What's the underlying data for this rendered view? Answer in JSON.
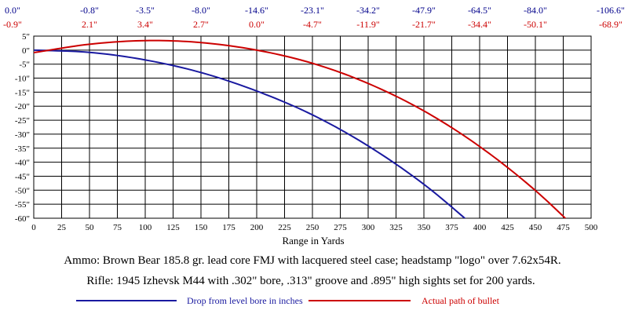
{
  "chart_data": {
    "type": "line",
    "xlabel": "Range in Yards",
    "ylabel": "",
    "xlim": [
      0,
      500
    ],
    "ylim": [
      -60,
      5
    ],
    "grid": true,
    "x_ticks": [
      "0",
      "25",
      "50",
      "75",
      "100",
      "125",
      "150",
      "175",
      "200",
      "225",
      "250",
      "275",
      "300",
      "325",
      "350",
      "375",
      "400",
      "425",
      "450",
      "475",
      "500"
    ],
    "y_ticks": [
      "0\"",
      "-5\"",
      "-10\"",
      "-15\"",
      "-20\"",
      "-25\"",
      "-30\"",
      "-35\"",
      "-40\"",
      "-45\"",
      "-50\"",
      "-55\"",
      "-60\""
    ],
    "y_tick_extra": "5\"",
    "top_labels_x": [
      0,
      50,
      100,
      150,
      200,
      250,
      300,
      350,
      400,
      450,
      500
    ],
    "drop_labels": [
      "0.0\"",
      "-0.8\"",
      "-3.5\"",
      "-8.0\"",
      "-14.6\"",
      "-23.1\"",
      "-34.2\"",
      "-47.9\"",
      "-64.5\"",
      "-84.0\"",
      "-106.6\""
    ],
    "path_labels": [
      "-0.9\"",
      "2.1\"",
      "3.4\"",
      "2.7\"",
      "0.0\"",
      "-4.7\"",
      "-11.9\"",
      "-21.7\"",
      "-34.4\"",
      "-50.1\"",
      "-68.9\""
    ],
    "series": [
      {
        "name": "Drop from level bore in inches",
        "color": "#1a1aa0",
        "x": [
          0,
          50,
          100,
          150,
          200,
          250,
          300,
          350,
          400
        ],
        "y": [
          0.0,
          -0.8,
          -3.5,
          -8.0,
          -14.6,
          -23.1,
          -34.2,
          -47.9,
          -64.5
        ]
      },
      {
        "name": "Actual path of bullet",
        "color": "#cc0000",
        "x": [
          0,
          50,
          100,
          150,
          200,
          250,
          300,
          350,
          400,
          450,
          500
        ],
        "y": [
          -0.9,
          2.1,
          3.4,
          2.7,
          0.0,
          -4.7,
          -11.9,
          -21.7,
          -34.4,
          -50.1,
          -68.9
        ]
      }
    ]
  },
  "notes": {
    "ammo": "Ammo:  Brown Bear 185.8 gr. lead core FMJ with lacquered steel case; headstamp \"logo\" over 7.62x54R.",
    "rifle": "Rifle:  1945 Izhevsk M44 with .302\" bore, .313\" groove and .895\" high sights set for 200 yards."
  }
}
